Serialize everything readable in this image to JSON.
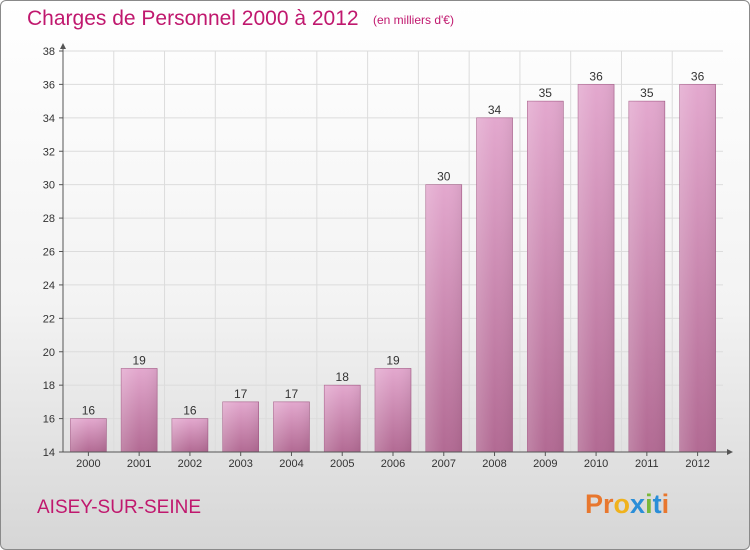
{
  "header": {
    "title": "Charges de Personnel 2000 à 2012",
    "subtitle": "(en milliers d'€)"
  },
  "footer": {
    "commune": "AISEY-SUR-SEINE",
    "logo_text": "Proxiti",
    "logo_colors": [
      "#e8772e",
      "#e8772e",
      "#f0b21c",
      "#2a8ed8",
      "#7ab83a",
      "#2a8ed8",
      "#e8772e"
    ]
  },
  "colors": {
    "title": "#c0186e",
    "bar_top": "#e3a8ce",
    "bar_bottom": "#b26a93",
    "axis": "#555555",
    "grid": "#dcdcdc"
  },
  "chart_data": {
    "type": "bar",
    "categories": [
      "2000",
      "2001",
      "2002",
      "2003",
      "2004",
      "2005",
      "2006",
      "2007",
      "2008",
      "2009",
      "2010",
      "2011",
      "2012"
    ],
    "values": [
      16,
      19,
      16,
      17,
      17,
      18,
      19,
      30,
      34,
      35,
      36,
      35,
      36
    ],
    "title": "Charges de Personnel 2000 à 2012",
    "subtitle": "(en milliers d'€)",
    "xlabel": "",
    "ylabel": "",
    "ylim": [
      14,
      38
    ],
    "yticks": [
      14,
      16,
      18,
      20,
      22,
      24,
      26,
      28,
      30,
      32,
      34,
      36,
      38
    ],
    "grid": true,
    "data_labels": true
  }
}
